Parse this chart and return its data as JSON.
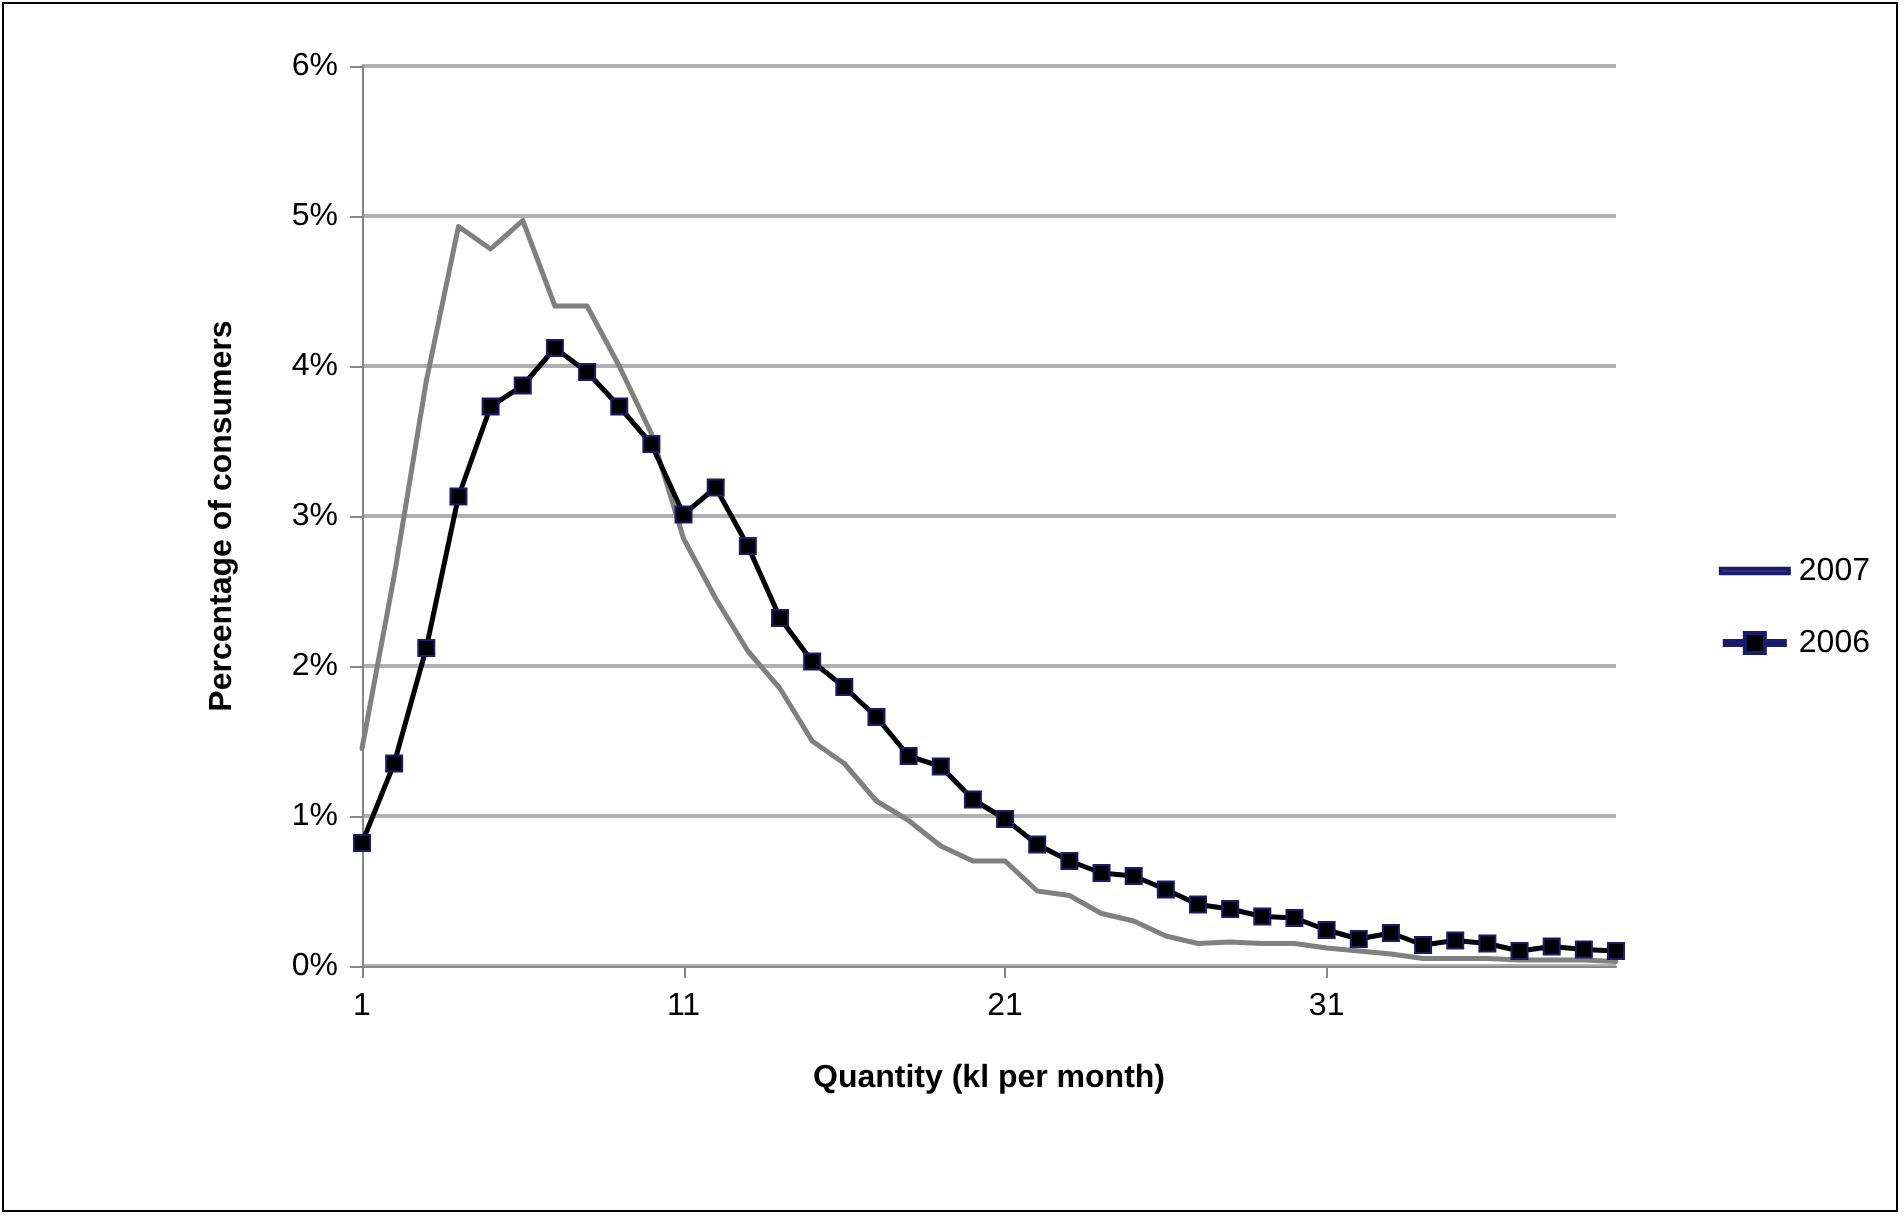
{
  "chart_data": {
    "type": "line",
    "xlabel": "Quantity (kl per month)",
    "ylabel": "Percentage of consumers",
    "x": [
      1,
      2,
      3,
      4,
      5,
      6,
      7,
      8,
      9,
      10,
      11,
      12,
      13,
      14,
      15,
      16,
      17,
      18,
      19,
      20,
      21,
      22,
      23,
      24,
      25,
      26,
      27,
      28,
      29,
      30,
      31,
      32,
      33,
      34,
      35,
      36,
      37,
      38,
      39,
      40
    ],
    "xlim": [
      1,
      40
    ],
    "xticks": [
      1,
      11,
      21,
      31
    ],
    "ylim": [
      0,
      6
    ],
    "yticks": [
      {
        "value": 0,
        "label": "0%"
      },
      {
        "value": 1,
        "label": "1%"
      },
      {
        "value": 2,
        "label": "2%"
      },
      {
        "value": 3,
        "label": "3%"
      },
      {
        "value": 4,
        "label": "4%"
      },
      {
        "value": 5,
        "label": "5%"
      },
      {
        "value": 6,
        "label": "6%"
      }
    ],
    "grid": "y",
    "legend": "right",
    "series": [
      {
        "name": "2007",
        "color": "#808080",
        "marker": "none",
        "values": [
          1.45,
          2.6,
          3.9,
          4.93,
          4.78,
          4.97,
          4.4,
          4.4,
          4.0,
          3.55,
          2.85,
          2.45,
          2.1,
          1.85,
          1.5,
          1.35,
          1.1,
          0.97,
          0.8,
          0.7,
          0.7,
          0.5,
          0.47,
          0.35,
          0.3,
          0.2,
          0.15,
          0.16,
          0.15,
          0.15,
          0.12,
          0.1,
          0.08,
          0.05,
          0.05,
          0.05,
          0.04,
          0.04,
          0.04,
          0.03
        ]
      },
      {
        "name": "2006",
        "color": "#000000",
        "marker": "square",
        "values": [
          0.82,
          1.35,
          2.12,
          3.13,
          3.73,
          3.87,
          4.12,
          3.96,
          3.73,
          3.48,
          3.01,
          3.19,
          2.8,
          2.32,
          2.03,
          1.86,
          1.66,
          1.4,
          1.33,
          1.11,
          0.98,
          0.81,
          0.7,
          0.62,
          0.6,
          0.51,
          0.41,
          0.38,
          0.33,
          0.32,
          0.24,
          0.18,
          0.22,
          0.14,
          0.17,
          0.15,
          0.1,
          0.13,
          0.11,
          0.1
        ]
      }
    ]
  }
}
